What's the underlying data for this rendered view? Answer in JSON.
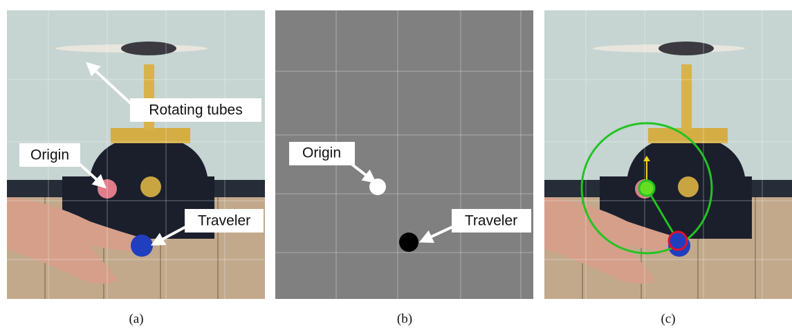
{
  "panels": [
    {
      "caption": "(a)",
      "labels": [
        "Rotating tubes",
        "Origin",
        "Traveler"
      ]
    },
    {
      "caption": "(b)",
      "labels": [
        "Origin",
        "Traveler"
      ]
    },
    {
      "caption": "(c)"
    }
  ]
}
